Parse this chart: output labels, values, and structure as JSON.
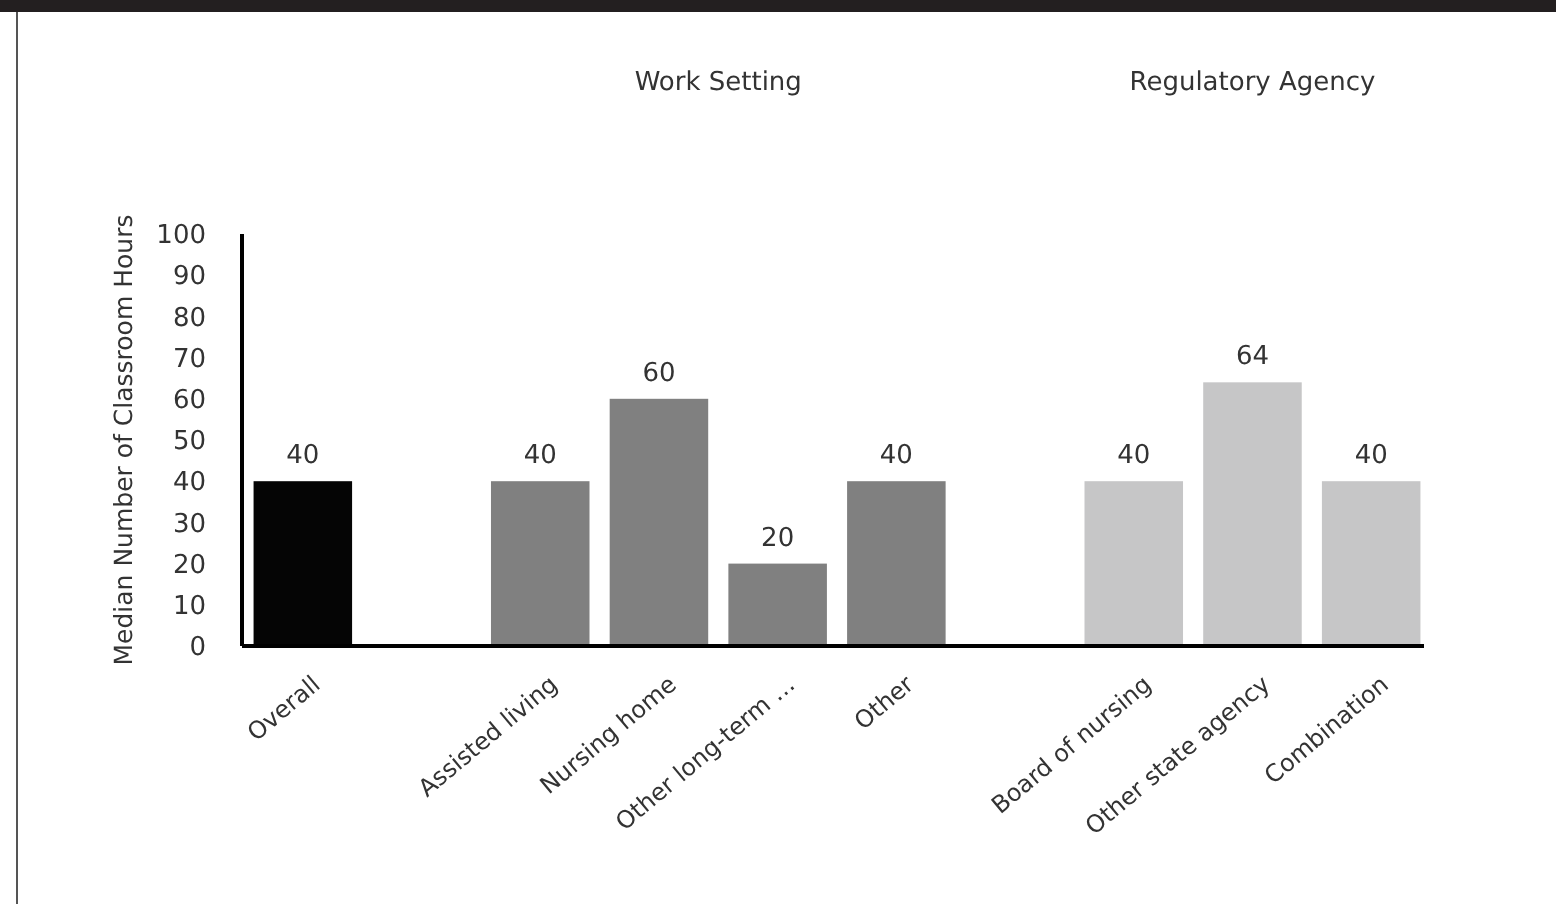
{
  "chart_data": {
    "type": "bar",
    "ylabel": "Median Number of Classroom Hours",
    "categories": [
      "Overall",
      null,
      "Assisted living",
      "Nursing home",
      "Other long-term …",
      "Other",
      null,
      "Board of nursing",
      "Other state agency",
      "Combination"
    ],
    "values": [
      40,
      null,
      40,
      60,
      20,
      40,
      null,
      40,
      64,
      40
    ],
    "colors": [
      "#050505",
      null,
      "#808080",
      "#808080",
      "#808080",
      "#808080",
      null,
      "#c6c6c7",
      "#c6c6c7",
      "#c6c6c7"
    ],
    "ylim": [
      0,
      100
    ],
    "yticks": [
      0,
      10,
      20,
      30,
      40,
      50,
      60,
      70,
      80,
      90,
      100
    ],
    "grid": false,
    "data_labels": true,
    "annotations": [
      "Work Setting",
      "Regulatory Agency"
    ]
  }
}
